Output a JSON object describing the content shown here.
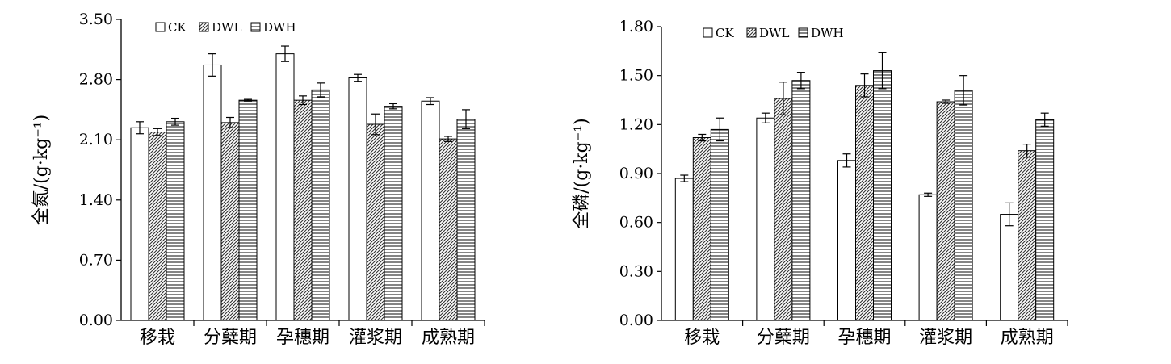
{
  "chart_data": [
    {
      "type": "bar",
      "title": "",
      "xlabel": "",
      "ylabel": "全氮/(g·kg⁻¹)",
      "ylim": [
        0,
        3.5
      ],
      "yticks": [
        "0.00",
        "0.70",
        "1.40",
        "2.10",
        "2.80",
        "3.50"
      ],
      "categories": [
        "移栽",
        "分蘖期",
        "孕穗期",
        "灌浆期",
        "成熟期"
      ],
      "legend_position": "top-left",
      "grid": false,
      "series": [
        {
          "name": "CK",
          "pattern": "plain",
          "values": [
            2.24,
            2.97,
            3.1,
            2.82,
            2.55
          ],
          "errors": [
            0.07,
            0.13,
            0.09,
            0.04,
            0.04
          ]
        },
        {
          "name": "DWL",
          "pattern": "diagonal",
          "values": [
            2.19,
            2.3,
            2.56,
            2.28,
            2.11
          ],
          "errors": [
            0.04,
            0.06,
            0.05,
            0.12,
            0.03
          ]
        },
        {
          "name": "DWH",
          "pattern": "horizontal",
          "values": [
            2.31,
            2.56,
            2.68,
            2.49,
            2.34
          ],
          "errors": [
            0.04,
            0.01,
            0.08,
            0.03,
            0.11
          ]
        }
      ]
    },
    {
      "type": "bar",
      "title": "",
      "xlabel": "",
      "ylabel": "全磷/(g·kg⁻¹)",
      "ylim": [
        0,
        1.8
      ],
      "yticks": [
        "0.00",
        "0.30",
        "0.60",
        "0.90",
        "1.20",
        "1.50",
        "1.80"
      ],
      "categories": [
        "移栽",
        "分蘖期",
        "孕穗期",
        "灌浆期",
        "成熟期"
      ],
      "legend_position": "top-left",
      "grid": false,
      "series": [
        {
          "name": "CK",
          "pattern": "plain",
          "values": [
            0.87,
            1.24,
            0.98,
            0.77,
            0.65
          ],
          "errors": [
            0.02,
            0.03,
            0.04,
            0.01,
            0.07
          ]
        },
        {
          "name": "DWL",
          "pattern": "diagonal",
          "values": [
            1.12,
            1.36,
            1.44,
            1.34,
            1.04
          ],
          "errors": [
            0.02,
            0.1,
            0.07,
            0.01,
            0.04
          ]
        },
        {
          "name": "DWH",
          "pattern": "horizontal",
          "values": [
            1.17,
            1.47,
            1.53,
            1.41,
            1.23
          ],
          "errors": [
            0.07,
            0.05,
            0.11,
            0.09,
            0.04
          ]
        }
      ]
    }
  ]
}
